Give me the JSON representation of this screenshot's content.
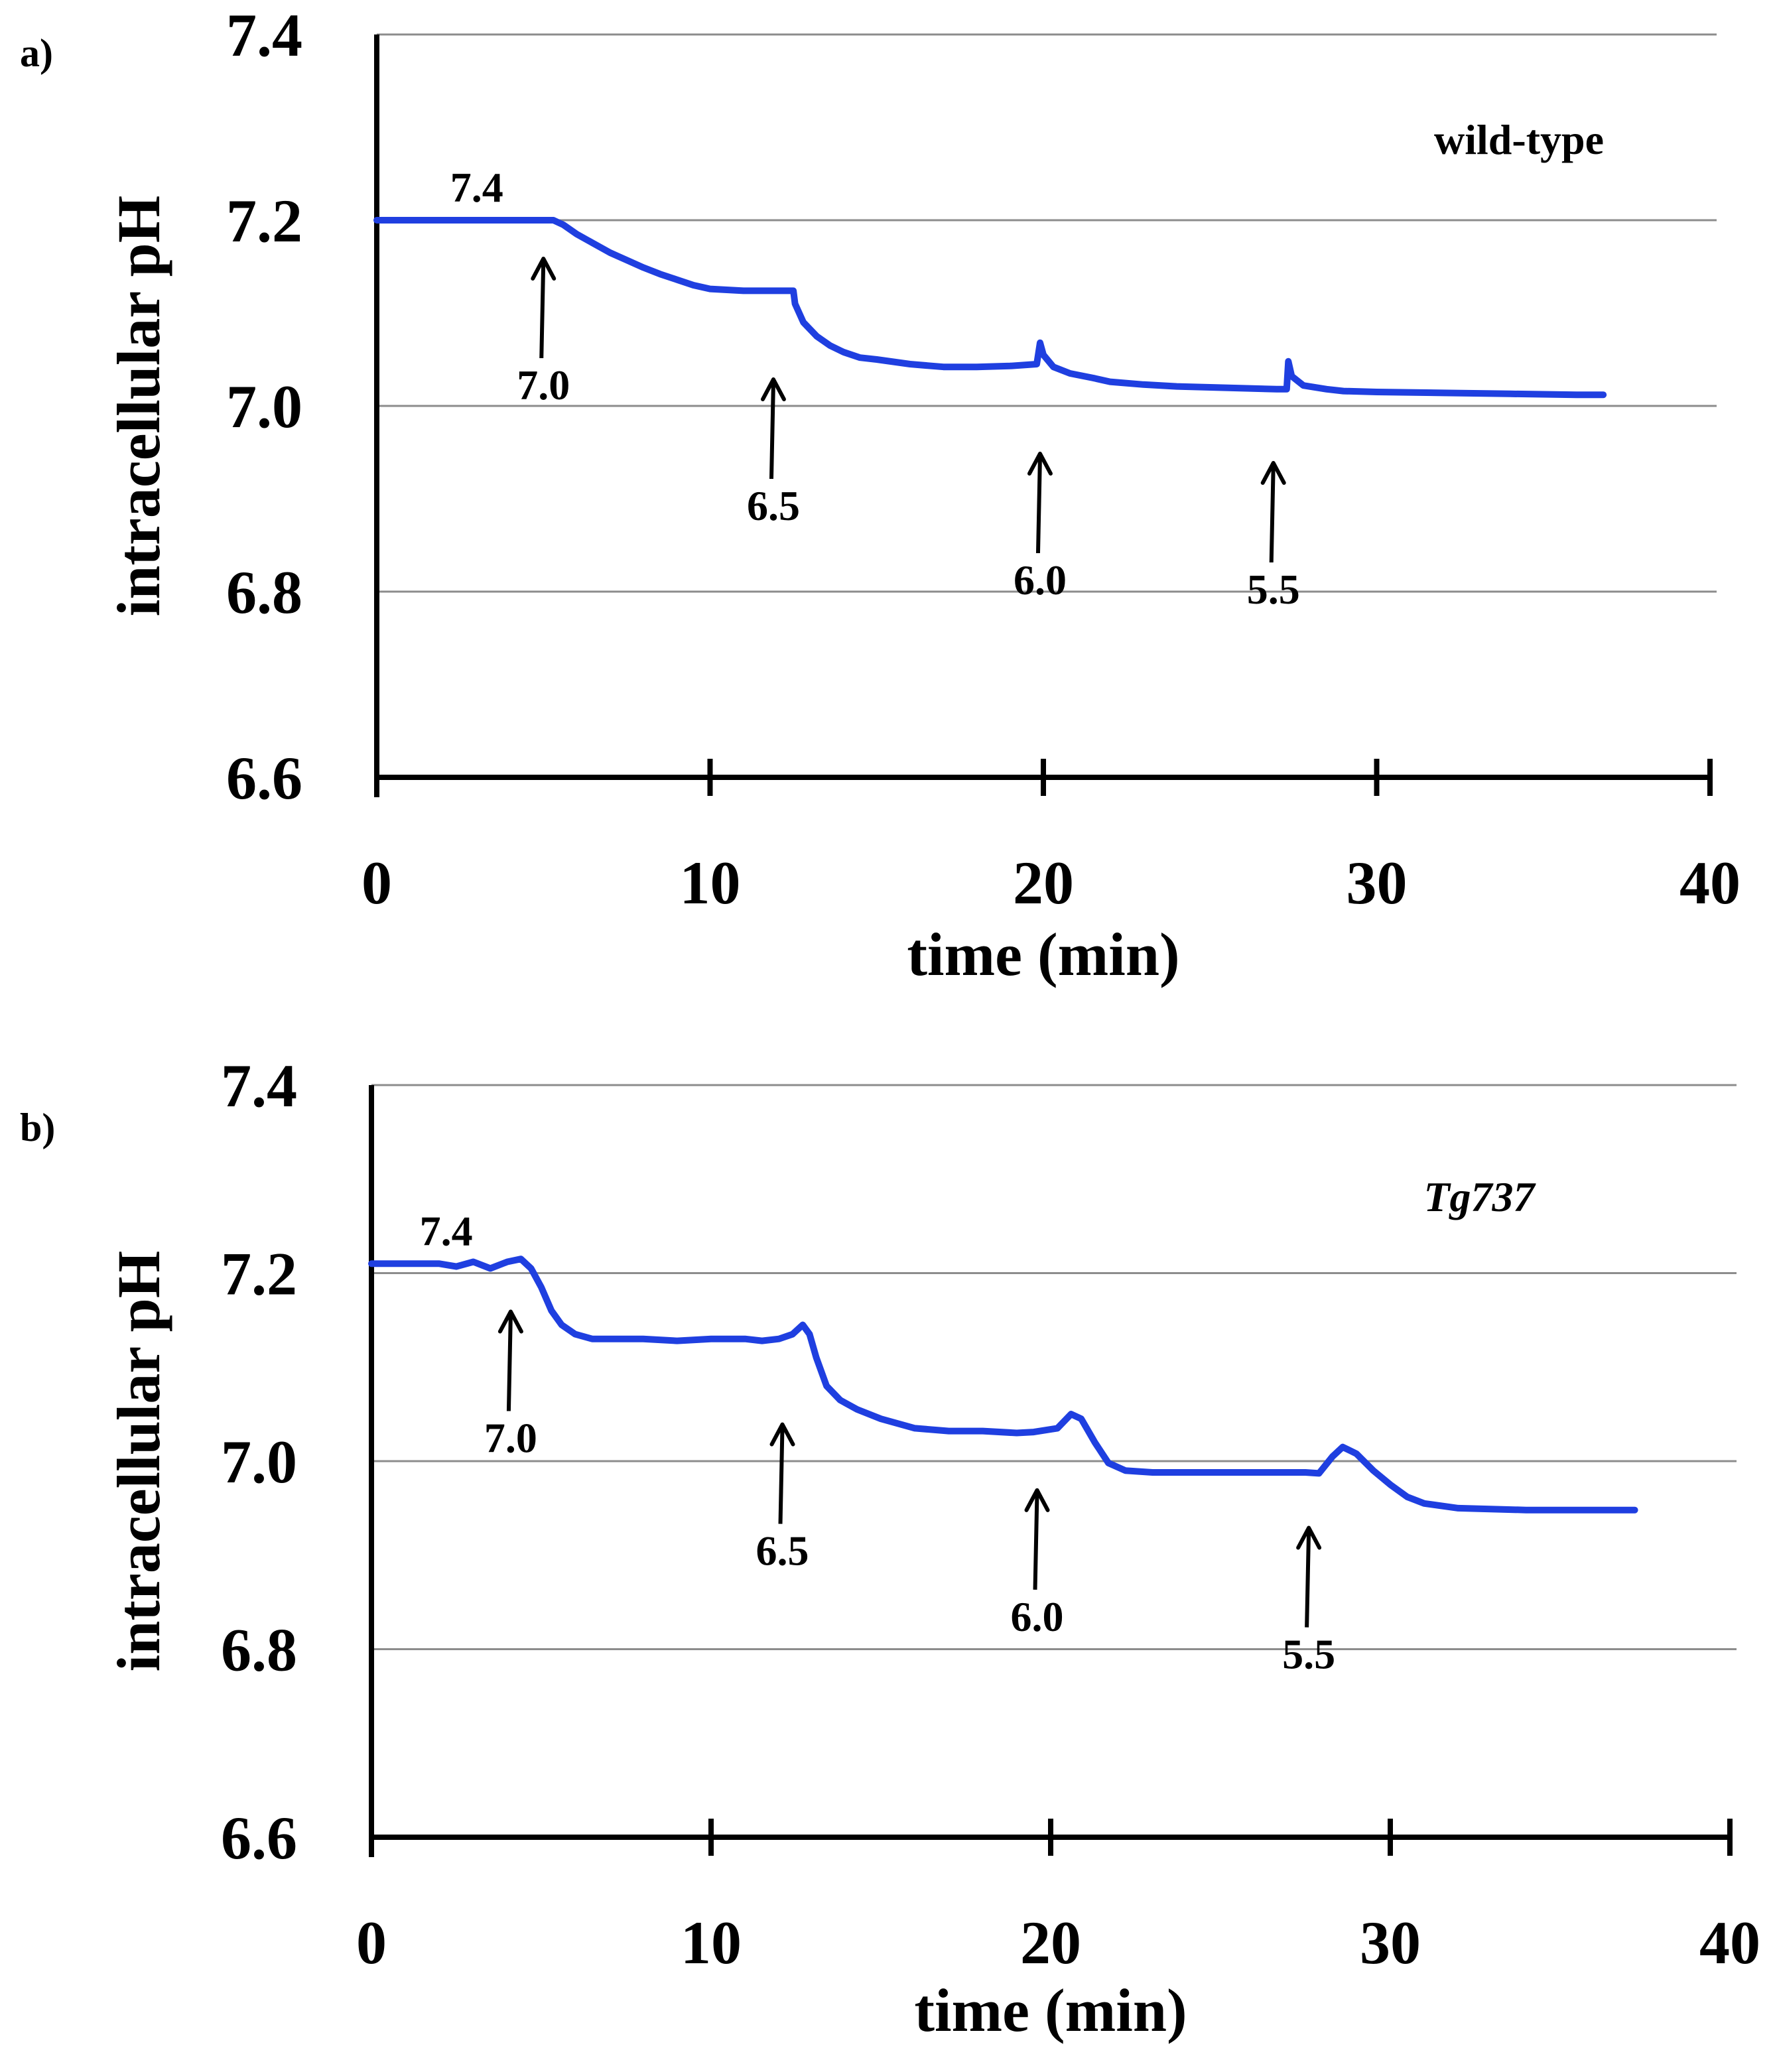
{
  "figure": {
    "axis_color": "#000000",
    "grid_color": "#8c8c8c"
  },
  "chart_data": [
    {
      "type": "line",
      "panel_label": "a)",
      "title": "wild-type",
      "title_italic": false,
      "xlabel": "time (min)",
      "ylabel": "intracellular pH",
      "xlim": [
        0,
        40
      ],
      "ylim": [
        6.6,
        7.4
      ],
      "xticks": [
        0,
        10,
        20,
        30,
        40
      ],
      "xtick_labels": [
        "0",
        "10",
        "20",
        "30",
        "40"
      ],
      "yticks": [
        6.6,
        6.8,
        7.0,
        7.2,
        7.4
      ],
      "ytick_labels": [
        "6.6",
        "6.8",
        "7.0",
        "7.2",
        "7.4"
      ],
      "grid": true,
      "series": [
        {
          "name": "wild-type",
          "color": "#1f3fe0",
          "x": [
            0,
            1,
            2,
            3,
            4,
            5,
            5.3,
            5.6,
            6,
            6.5,
            7,
            7.5,
            8,
            8.5,
            9,
            9.5,
            10,
            11,
            12,
            12.5,
            12.55,
            12.8,
            13.2,
            13.6,
            14,
            14.5,
            15,
            16,
            17,
            18,
            19,
            19.8,
            19.9,
            20.0,
            20.3,
            20.8,
            21.5,
            22,
            23,
            24,
            25,
            26,
            27,
            27.3,
            27.35,
            27.45,
            27.8,
            28.5,
            29,
            30,
            32,
            34,
            36,
            36.8
          ],
          "y": [
            7.2,
            7.2,
            7.2,
            7.2,
            7.2,
            7.2,
            7.2,
            7.195,
            7.185,
            7.175,
            7.165,
            7.157,
            7.149,
            7.142,
            7.136,
            7.13,
            7.126,
            7.124,
            7.124,
            7.124,
            7.11,
            7.09,
            7.075,
            7.065,
            7.058,
            7.052,
            7.05,
            7.045,
            7.042,
            7.042,
            7.043,
            7.045,
            7.068,
            7.055,
            7.042,
            7.035,
            7.03,
            7.026,
            7.023,
            7.021,
            7.02,
            7.019,
            7.018,
            7.018,
            7.048,
            7.032,
            7.022,
            7.018,
            7.016,
            7.015,
            7.014,
            7.013,
            7.012,
            7.012
          ]
        }
      ],
      "annotations": [
        {
          "label": "7.4",
          "x": 3.0,
          "y": 7.2,
          "kind": "text"
        },
        {
          "label": "7.0",
          "x": 5.0,
          "y": 7.2,
          "kind": "arrow"
        },
        {
          "label": "6.5",
          "x": 11.9,
          "y": 7.07,
          "kind": "arrow"
        },
        {
          "label": "6.0",
          "x": 19.9,
          "y": 6.99,
          "kind": "arrow"
        },
        {
          "label": "5.5",
          "x": 26.9,
          "y": 6.98,
          "kind": "arrow"
        }
      ]
    },
    {
      "type": "line",
      "panel_label": "b)",
      "title": "Tg737",
      "title_italic": true,
      "xlabel": "time (min)",
      "ylabel": "intracellular pH",
      "xlim": [
        0,
        40
      ],
      "ylim": [
        6.6,
        7.4
      ],
      "xticks": [
        0,
        10,
        20,
        30,
        40
      ],
      "xtick_labels": [
        "0",
        "10",
        "20",
        "30",
        "40"
      ],
      "yticks": [
        6.6,
        6.8,
        7.0,
        7.2,
        7.4
      ],
      "ytick_labels": [
        "6.6",
        "6.8",
        "7.0",
        "7.2",
        "7.4"
      ],
      "grid": true,
      "series": [
        {
          "name": "Tg737",
          "color": "#1f3fe0",
          "x": [
            0,
            1,
            2,
            2.5,
            3,
            3.5,
            4,
            4.4,
            4.7,
            5,
            5.3,
            5.6,
            6,
            6.5,
            7,
            8,
            9,
            10,
            11,
            11.5,
            12,
            12.4,
            12.7,
            12.9,
            13.1,
            13.4,
            13.8,
            14.3,
            15,
            16,
            17,
            18,
            19,
            19.5,
            20.2,
            20.6,
            20.9,
            21.3,
            21.7,
            22.2,
            23,
            24,
            25,
            26,
            27,
            27.5,
            27.9,
            28.3,
            28.6,
            29,
            29.5,
            30,
            30.5,
            31,
            32,
            34,
            36,
            37.2
          ],
          "y": [
            7.21,
            7.21,
            7.21,
            7.207,
            7.212,
            7.205,
            7.212,
            7.215,
            7.205,
            7.185,
            7.16,
            7.145,
            7.135,
            7.13,
            7.13,
            7.13,
            7.128,
            7.13,
            7.13,
            7.128,
            7.13,
            7.135,
            7.145,
            7.135,
            7.11,
            7.08,
            7.065,
            7.055,
            7.045,
            7.035,
            7.032,
            7.032,
            7.03,
            7.031,
            7.035,
            7.05,
            7.045,
            7.02,
            6.998,
            6.99,
            6.988,
            6.988,
            6.988,
            6.988,
            6.988,
            6.988,
            6.987,
            7.005,
            7.015,
            7.008,
            6.99,
            6.975,
            6.962,
            6.955,
            6.95,
            6.948,
            6.948,
            6.948
          ]
        }
      ],
      "annotations": [
        {
          "label": "7.4",
          "x": 2.2,
          "y": 7.21,
          "kind": "text"
        },
        {
          "label": "7.0",
          "x": 4.1,
          "y": 7.2,
          "kind": "arrow"
        },
        {
          "label": "6.5",
          "x": 12.1,
          "y": 7.08,
          "kind": "arrow"
        },
        {
          "label": "6.0",
          "x": 19.6,
          "y": 7.01,
          "kind": "arrow"
        },
        {
          "label": "5.5",
          "x": 27.6,
          "y": 6.97,
          "kind": "arrow"
        }
      ]
    }
  ]
}
